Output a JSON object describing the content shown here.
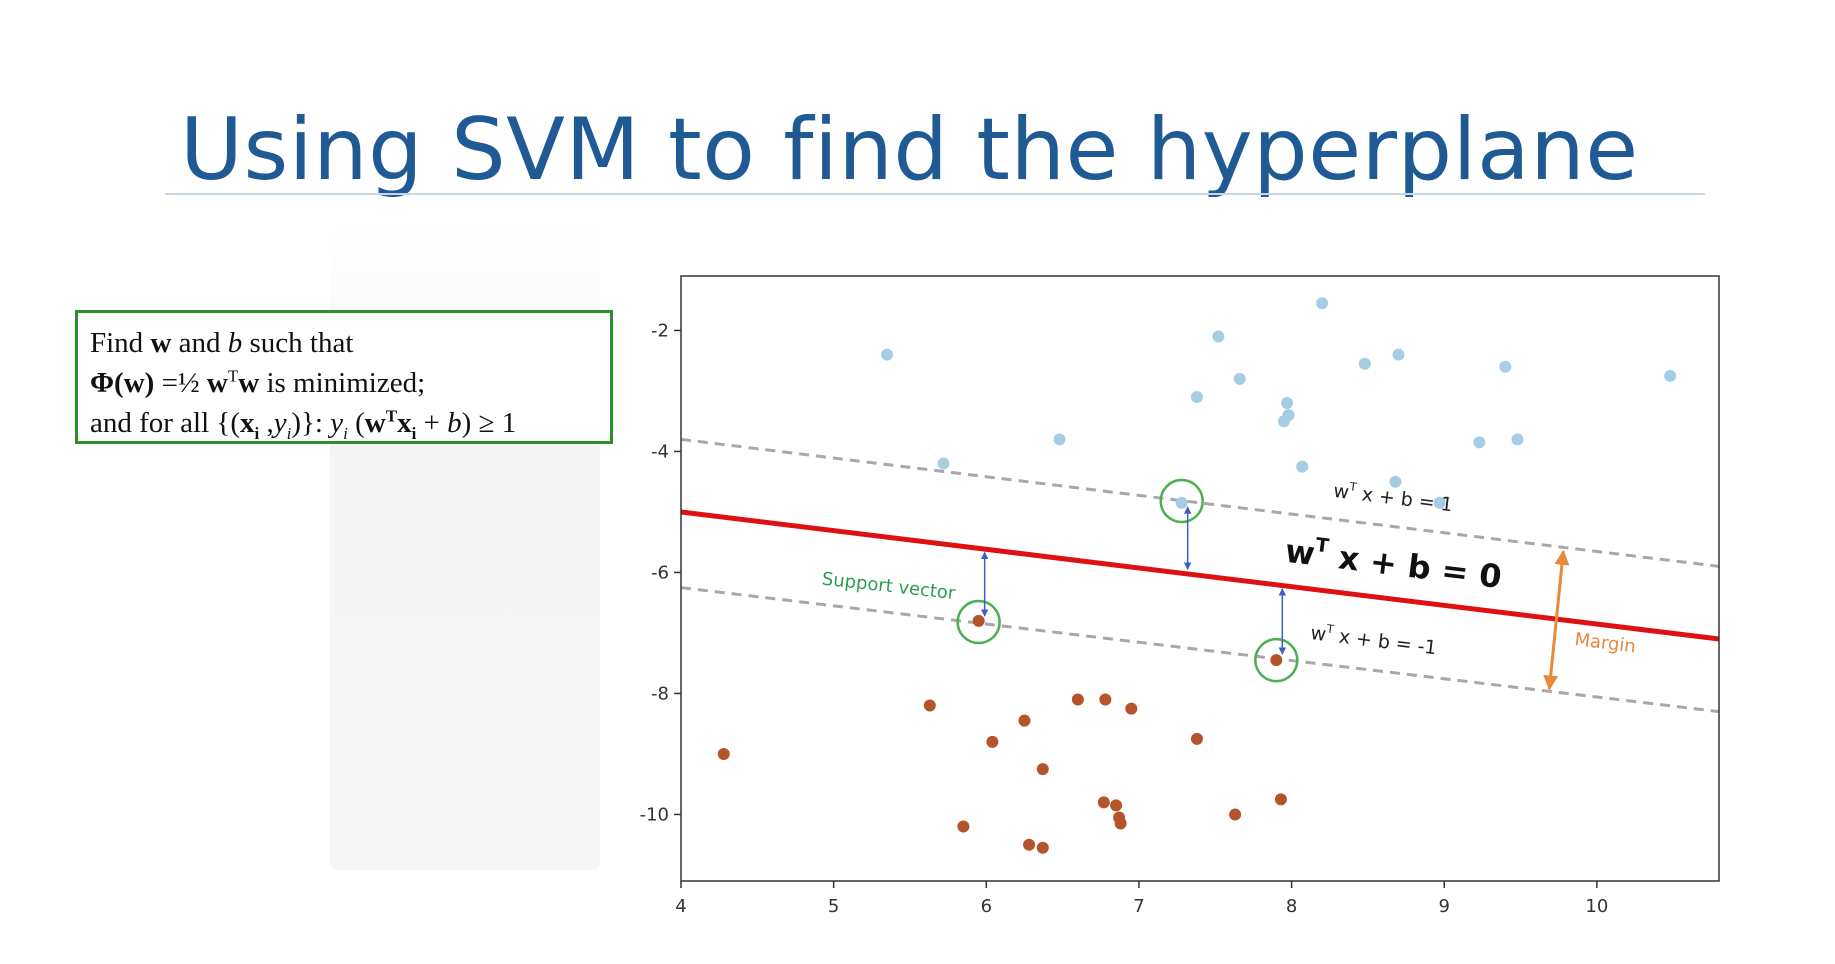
{
  "slide": {
    "title": "Using SVM to find the hyperplane"
  },
  "formula": {
    "line1": {
      "t1": "Find ",
      "w": "w",
      "t2": " and ",
      "b": "b",
      "t3": " such that"
    },
    "line2": {
      "phi": "Φ(w)",
      "t1": " =½ ",
      "w1": "w",
      "sup": "T",
      "w2": "w",
      "t2": "  is minimized;"
    },
    "line3": {
      "t1": "and for all {(",
      "x": "x",
      "sub_i": "i",
      "t2": " ,",
      "y": "y",
      "sub_i2": "i",
      "t3": ")}:  ",
      "y2": "y",
      "sub_i3": "i",
      "t4": " (",
      "w": "w",
      "sup": "T",
      "x2": "x",
      "sub_i4": "i",
      "t5": " + ",
      "b": "b",
      "t6": ") ≥ 1"
    }
  },
  "chart_data": {
    "type": "scatter",
    "xlim": [
      4,
      10.8
    ],
    "ylim": [
      -11.1,
      -1.1
    ],
    "xticks": [
      "4",
      "5",
      "6",
      "7",
      "8",
      "9",
      "10"
    ],
    "yticks": [
      "-2",
      "-4",
      "-6",
      "-8",
      "-10"
    ],
    "xtick_values": [
      4,
      5,
      6,
      7,
      8,
      9,
      10
    ],
    "ytick_values": [
      -2,
      -4,
      -6,
      -8,
      -10
    ],
    "series": [
      {
        "color": "#a6cde3",
        "points": [
          [
            5.35,
            -2.4
          ],
          [
            5.72,
            -4.2
          ],
          [
            6.48,
            -3.8
          ],
          [
            7.38,
            -3.1
          ],
          [
            7.52,
            -2.1
          ],
          [
            7.66,
            -2.8
          ],
          [
            7.95,
            -3.5
          ],
          [
            7.97,
            -3.2
          ],
          [
            7.98,
            -3.4
          ],
          [
            8.07,
            -4.25
          ],
          [
            8.2,
            -1.55
          ],
          [
            8.48,
            -2.55
          ],
          [
            8.68,
            -4.5
          ],
          [
            8.7,
            -2.4
          ],
          [
            8.97,
            -4.85
          ],
          [
            9.23,
            -3.85
          ],
          [
            9.4,
            -2.6
          ],
          [
            9.48,
            -3.8
          ],
          [
            10.48,
            -2.75
          ],
          [
            7.28,
            -4.85
          ]
        ]
      },
      {
        "color": "#b5542a",
        "points": [
          [
            4.28,
            -9.0
          ],
          [
            5.63,
            -8.2
          ],
          [
            5.85,
            -10.2
          ],
          [
            5.95,
            -6.8
          ],
          [
            6.04,
            -8.8
          ],
          [
            6.25,
            -8.45
          ],
          [
            6.28,
            -10.5
          ],
          [
            6.37,
            -9.25
          ],
          [
            6.37,
            -10.55
          ],
          [
            6.6,
            -8.1
          ],
          [
            6.77,
            -9.8
          ],
          [
            6.78,
            -8.1
          ],
          [
            6.85,
            -9.85
          ],
          [
            6.87,
            -10.05
          ],
          [
            6.88,
            -10.15
          ],
          [
            6.95,
            -8.25
          ],
          [
            7.38,
            -8.75
          ],
          [
            7.63,
            -10.0
          ],
          [
            7.9,
            -7.45
          ],
          [
            7.93,
            -9.75
          ]
        ]
      }
    ],
    "hyperplane": {
      "color": "#dd1111",
      "x": [
        4,
        10.8
      ],
      "y": [
        -5.0,
        -7.1
      ]
    },
    "margin_upper": {
      "color": "#a8a8a8",
      "x": [
        4,
        10.8
      ],
      "y": [
        -3.8,
        -5.9
      ]
    },
    "margin_lower": {
      "color": "#a8a8a8",
      "x": [
        4,
        10.8
      ],
      "y": [
        -6.25,
        -8.3
      ]
    },
    "support_vectors": [
      [
        5.95,
        -6.82
      ],
      [
        7.28,
        -4.82
      ],
      [
        7.9,
        -7.45
      ]
    ],
    "support_vector_color": "#4caf50",
    "annotations": {
      "hyperplane_label": "wT x + b = 0",
      "upper_label": "wT x + b = 1",
      "lower_label": "wT x + b = -1",
      "support_vector_label": "Support vector",
      "margin_label": "Margin",
      "support_vector_label_color": "#2e9e4e",
      "margin_color": "#e8893a",
      "arrow_color": "#3b5fc0"
    }
  }
}
